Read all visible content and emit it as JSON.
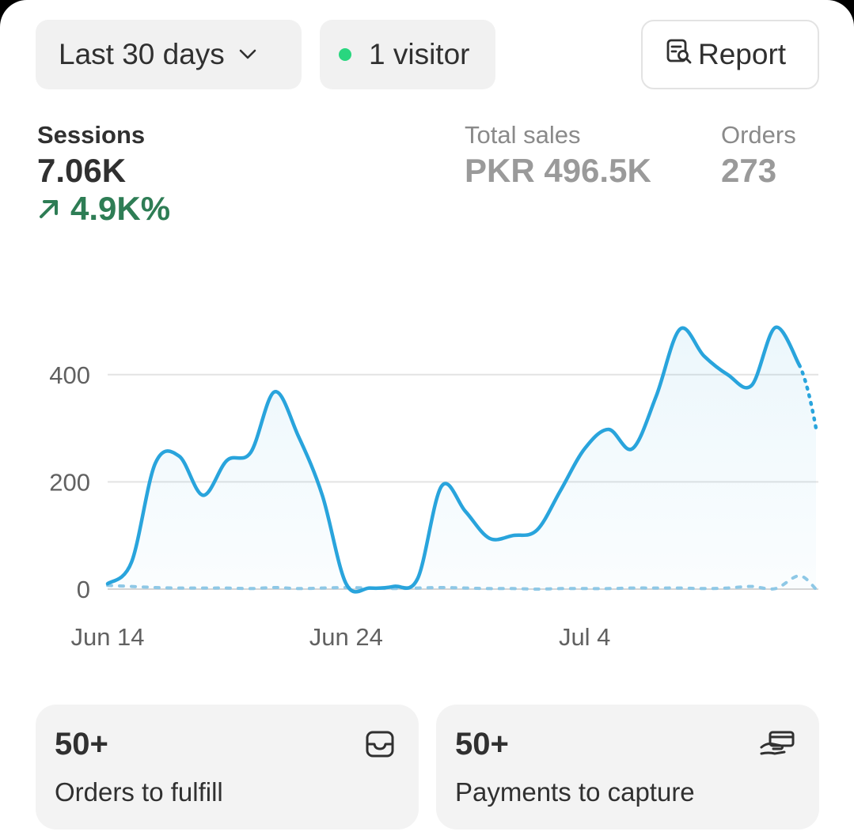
{
  "toolbar": {
    "date_range": "Last 30 days",
    "visitors": "1 visitor",
    "report": "Report",
    "live_color": "#29d67f"
  },
  "metrics": {
    "sessions": {
      "label": "Sessions",
      "value": "7.06K",
      "change": "4.9K%",
      "change_color": "#2e7d55"
    },
    "total_sales": {
      "label": "Total sales",
      "value": "PKR 496.5K"
    },
    "orders": {
      "label": "Orders",
      "value": "273"
    }
  },
  "chart_data": {
    "type": "line",
    "y_ticks": [
      "0",
      "200",
      "400"
    ],
    "ylim": [
      0,
      500
    ],
    "x_tick_labels": [
      "Jun 14",
      "Jun 24",
      "Jul 4"
    ],
    "series": [
      {
        "style": "solid",
        "color": "#29a4dc",
        "x": [
          0,
          1,
          2,
          3,
          4,
          5,
          6,
          7,
          8,
          9,
          10,
          11,
          12,
          13,
          14,
          15,
          16,
          17,
          18,
          19,
          20,
          21,
          22,
          23,
          24,
          25,
          26,
          27,
          28,
          29
        ],
        "values": [
          10,
          50,
          235,
          248,
          175,
          240,
          255,
          368,
          285,
          175,
          10,
          2,
          5,
          20,
          192,
          145,
          95,
          100,
          110,
          185,
          262,
          298,
          262,
          360,
          485,
          435,
          400,
          380,
          488,
          418
        ]
      },
      {
        "style": "dotted",
        "color": "#29a4dc",
        "x": [
          29,
          29.7
        ],
        "values": [
          418,
          300
        ]
      },
      {
        "style": "dotted-comparison",
        "color": "#8ec8e6",
        "x": [
          0,
          1,
          2,
          3,
          4,
          5,
          6,
          7,
          8,
          9,
          10,
          11,
          12,
          13,
          14,
          15,
          16,
          17,
          18,
          19,
          20,
          21,
          22,
          23,
          24,
          25,
          26,
          27,
          28,
          29,
          29.7
        ],
        "values": [
          7,
          5,
          3,
          2,
          2,
          2,
          1,
          3,
          1,
          2,
          3,
          2,
          1,
          2,
          3,
          2,
          1,
          1,
          0,
          1,
          1,
          1,
          2,
          2,
          2,
          1,
          2,
          5,
          1,
          25,
          0
        ]
      }
    ]
  },
  "tasks": {
    "fulfill": {
      "count": "50+",
      "label": "Orders to fulfill"
    },
    "capture": {
      "count": "50+",
      "label": "Payments to capture"
    }
  }
}
